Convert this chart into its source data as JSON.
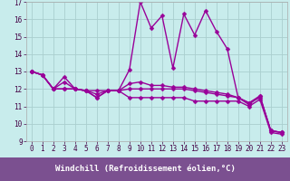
{
  "xlabel": "Windchill (Refroidissement éolien,°C)",
  "background_color": "#c8ecec",
  "xlabel_bg": "#7b5fa0",
  "grid_color": "#aacfcf",
  "line_color": "#990099",
  "xlim": [
    -0.5,
    23.5
  ],
  "ylim": [
    9,
    17
  ],
  "xticks": [
    0,
    1,
    2,
    3,
    4,
    5,
    6,
    7,
    8,
    9,
    10,
    11,
    12,
    13,
    14,
    15,
    16,
    17,
    18,
    19,
    20,
    21,
    22,
    23
  ],
  "yticks": [
    9,
    10,
    11,
    12,
    13,
    14,
    15,
    16,
    17
  ],
  "lines": [
    [
      13.0,
      12.8,
      12.0,
      12.7,
      12.0,
      11.9,
      11.5,
      11.9,
      11.9,
      13.1,
      17.0,
      15.5,
      16.2,
      13.2,
      16.3,
      15.1,
      16.5,
      15.3,
      14.3,
      11.5,
      11.1,
      11.6,
      9.6,
      9.5
    ],
    [
      13.0,
      12.8,
      12.0,
      12.0,
      12.0,
      11.9,
      11.9,
      11.9,
      11.9,
      12.0,
      12.0,
      12.0,
      12.0,
      12.0,
      12.0,
      11.9,
      11.8,
      11.7,
      11.6,
      11.5,
      11.2,
      11.6,
      9.6,
      9.5
    ],
    [
      13.0,
      12.8,
      12.0,
      12.4,
      12.0,
      11.9,
      11.7,
      11.9,
      11.9,
      12.3,
      12.4,
      12.2,
      12.2,
      12.1,
      12.1,
      12.0,
      11.9,
      11.8,
      11.7,
      11.5,
      11.2,
      11.5,
      9.6,
      9.5
    ],
    [
      13.0,
      12.8,
      12.0,
      12.0,
      12.0,
      11.9,
      11.5,
      11.9,
      11.9,
      11.5,
      11.5,
      11.5,
      11.5,
      11.5,
      11.5,
      11.3,
      11.3,
      11.3,
      11.3,
      11.3,
      11.0,
      11.4,
      9.5,
      9.4
    ]
  ],
  "markersize": 2.5,
  "linewidth": 1.0,
  "tick_fontsize": 5.5,
  "xlabel_fontsize": 6.5
}
